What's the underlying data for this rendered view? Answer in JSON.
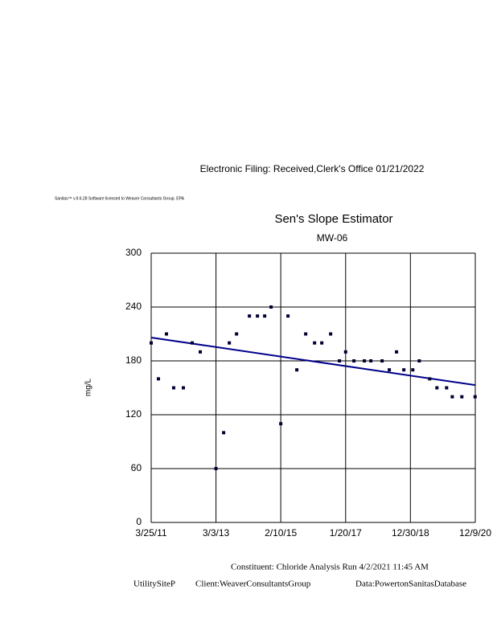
{
  "header": "Electronic Filing: Received,Clerk's Office 01/21/2022",
  "software_note": "Sanitas™ v.9.6.28 Software licensed to Weaver Consultants Group. EPA",
  "chart_data": {
    "type": "scatter",
    "title": "Sen's Slope Estimator",
    "subtitle": "MW-06",
    "ylabel": "mg/L",
    "xlim": [
      "2011-03-25",
      "2020-12-09"
    ],
    "xticks": [
      {
        "value": "2011-03-25",
        "label": "3/25/11"
      },
      {
        "value": "2013-03-03",
        "label": "3/3/13"
      },
      {
        "value": "2015-02-10",
        "label": "2/10/15"
      },
      {
        "value": "2017-01-20",
        "label": "1/20/17"
      },
      {
        "value": "2018-12-30",
        "label": "12/30/18"
      },
      {
        "value": "2020-12-09",
        "label": "12/9/20"
      }
    ],
    "ylim": [
      0,
      300
    ],
    "yticks": [
      0,
      60,
      120,
      180,
      240,
      300
    ],
    "grid": true,
    "series": [
      {
        "color": "#000033",
        "x": [
          "2011-03-25",
          "2011-06-12",
          "2011-09-08",
          "2011-11-26",
          "2012-03-11",
          "2012-06-16",
          "2012-09-12",
          "2013-03-03",
          "2013-05-26",
          "2013-07-27",
          "2013-10-14",
          "2014-03-04",
          "2014-05-31",
          "2014-08-18",
          "2014-10-27",
          "2015-02-10",
          "2015-04-30",
          "2015-08-05",
          "2015-11-10",
          "2016-02-15",
          "2016-05-04",
          "2016-08-09",
          "2016-11-13",
          "2017-01-20",
          "2017-04-21",
          "2017-08-13",
          "2017-10-23",
          "2018-02-23",
          "2018-05-13",
          "2018-07-31",
          "2018-10-19",
          "2019-01-25",
          "2019-04-06",
          "2019-07-29",
          "2019-10-16",
          "2020-01-30",
          "2020-04-01",
          "2020-07-15",
          "2020-12-07"
        ],
        "values": [
          200,
          160,
          210,
          150,
          150,
          200,
          190,
          60,
          100,
          200,
          210,
          230,
          230,
          230,
          240,
          110,
          230,
          170,
          210,
          200,
          200,
          210,
          180,
          190,
          180,
          180,
          180,
          180,
          170,
          190,
          170,
          170,
          180,
          160,
          150,
          150,
          140,
          140,
          140
        ]
      }
    ],
    "trend_line": {
      "color": "#00008b",
      "x": [
        "2011-03-25",
        "2020-12-09"
      ],
      "values": [
        206,
        153
      ]
    }
  },
  "footer": {
    "line1": "Constituent: Chloride Analysis Run 4/2/2021 11:45 AM",
    "site": "UtilitySiteP",
    "client": "Client:WeaverConsultantsGroup",
    "data": "Data:PowertonSanitasDatabase"
  }
}
